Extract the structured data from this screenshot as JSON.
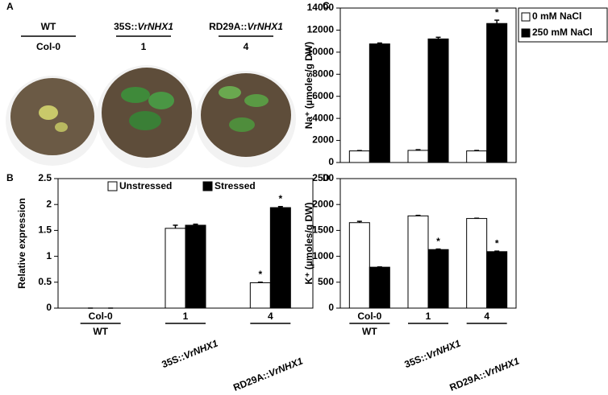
{
  "photo_panel": {
    "panel_label": "A",
    "columns": [
      {
        "genotype": [
          "WT"
        ],
        "line": "Col-0"
      },
      {
        "genotype": [
          "35S::",
          "VrNHX1"
        ],
        "line": "1"
      },
      {
        "genotype": [
          "RD29A::",
          "VrNHX1"
        ],
        "line": "4"
      }
    ]
  },
  "chart_data": [
    {
      "type": "bar",
      "panel_label": "B",
      "ylabel": "Relative expression",
      "categories": [
        "Col-0",
        "1",
        "4"
      ],
      "genotypes": [
        [
          "WT"
        ],
        [
          "35S::",
          "VrNHX1"
        ],
        [
          "RD29A::",
          "VrNHX1"
        ]
      ],
      "ylim": [
        0,
        2.5
      ],
      "yticks": [
        0,
        0.5,
        1,
        1.5,
        2,
        2.5
      ],
      "legend": "top",
      "series": [
        {
          "name": "Unstressed",
          "color": "#ffffff",
          "values": [
            0,
            1.54,
            0.49
          ],
          "errors": [
            0,
            0.06,
            0.01
          ],
          "significance": [
            null,
            null,
            "*"
          ]
        },
        {
          "name": "Stressed",
          "color": "#000000",
          "values": [
            0,
            1.6,
            1.94
          ],
          "errors": [
            0,
            0.02,
            0.02
          ],
          "significance": [
            null,
            null,
            "*"
          ]
        }
      ]
    },
    {
      "type": "bar",
      "panel_label": "C",
      "ylabel": "Na⁺ (µmoles/g DW)",
      "ylim": [
        0,
        14000
      ],
      "yticks": [
        0,
        2000,
        4000,
        6000,
        8000,
        10000,
        12000,
        14000
      ],
      "legend": "outside-right",
      "series": [
        {
          "name": "0 mM NaCl",
          "color": "#ffffff",
          "values": [
            1050,
            1100,
            1050
          ],
          "errors": [
            30,
            60,
            40
          ],
          "significance": [
            null,
            null,
            null
          ]
        },
        {
          "name": "250 mM NaCl",
          "color": "#000000",
          "values": [
            10750,
            11200,
            12600
          ],
          "errors": [
            80,
            150,
            300
          ],
          "significance": [
            null,
            null,
            "*"
          ]
        }
      ]
    },
    {
      "type": "bar",
      "panel_label": "D",
      "ylabel": "K⁺ (µmoles/g DW)",
      "categories": [
        "Col-0",
        "1",
        "4"
      ],
      "genotypes": [
        [
          "WT"
        ],
        [
          "35S::",
          "VrNHX1"
        ],
        [
          "RD29A::",
          "VrNHX1"
        ]
      ],
      "ylim": [
        0,
        2500
      ],
      "yticks": [
        0,
        500,
        1000,
        1500,
        2000,
        2500
      ],
      "series": [
        {
          "color": "#ffffff",
          "values": [
            1650,
            1780,
            1730
          ],
          "errors": [
            25,
            10,
            5
          ],
          "significance": [
            null,
            null,
            null
          ]
        },
        {
          "color": "#000000",
          "values": [
            790,
            1130,
            1090
          ],
          "errors": [
            5,
            10,
            10
          ],
          "significance": [
            null,
            "*",
            "*"
          ]
        }
      ]
    }
  ]
}
